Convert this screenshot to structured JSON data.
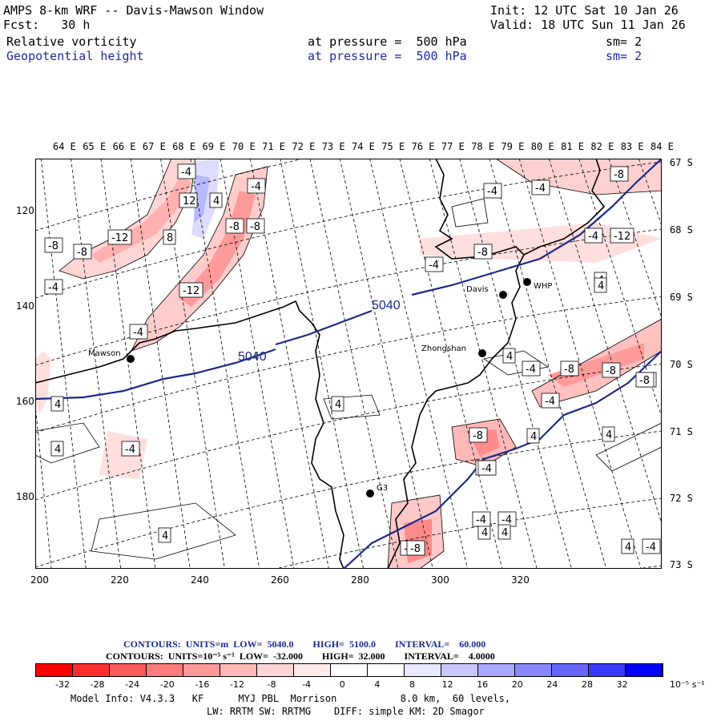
{
  "header": {
    "line1_left": "AMPS 8-km WRF -- Davis-Mawson Window",
    "line1_right": "Init: 12 UTC Sat 10 Jan 26",
    "line2_left": "Fcst:   30 h",
    "line2_right": "Valid: 18 UTC Sun 11 Jan 26",
    "field1": "Relative vorticity",
    "field1_level": "at pressure =  500 hPa",
    "field1_sm": "sm= 2",
    "field2": "Geopotential height",
    "field2_level": "at pressure =  500 hPa",
    "field2_sm": "sm= 2"
  },
  "lon_labels": [
    "64 E",
    "65 E",
    "66 E",
    "67 E",
    "68 E",
    "69 E",
    "70 E",
    "71 E",
    "72 E",
    "73 E",
    "74 E",
    "75 E",
    "76 E",
    "77 E",
    "78 E",
    "79 E",
    "80 E",
    "81 E",
    "82 E",
    "83 E",
    "84 E"
  ],
  "lat_labels": [
    "67 S",
    "68 S",
    "69 S",
    "70 S",
    "71 S",
    "72 S",
    "73 S"
  ],
  "y_grid_labels": [
    "120",
    "140",
    "160",
    "180"
  ],
  "x_grid_labels": [
    "200",
    "220",
    "240",
    "260",
    "280",
    "300",
    "320"
  ],
  "stations": [
    {
      "name": "Mawson"
    },
    {
      "name": "Davis"
    },
    {
      "name": "WHP"
    },
    {
      "name": "Zhongshan"
    },
    {
      "name": "G3"
    }
  ],
  "height_contour_labels": [
    "5040",
    "5040"
  ],
  "vorticity_labels": [
    "-4",
    "-8",
    "-12",
    "12",
    "4",
    "8",
    "-4",
    "-8",
    "-12",
    "-4",
    "-8",
    "-4",
    "-8",
    "-4",
    "-4",
    "-12",
    "-8",
    "-4",
    "-4",
    "-8",
    "-4",
    "-8",
    "-8",
    "-8",
    "-4",
    "4",
    "4",
    "4",
    "4",
    "4",
    "4",
    "-4",
    "-8",
    "-4",
    "-4",
    "4",
    "4",
    "4",
    "-8",
    "-4",
    "-4",
    "-4",
    "-8",
    "4",
    "-4",
    "4",
    "4"
  ],
  "footer": {
    "contours1": "CONTOURS:  UNITS=m  LOW=  5040.0        HIGH=  5100.0        INTERVAL=    60.000",
    "contours2": "CONTOURS:  UNITS=10⁻⁵ s⁻¹  LOW=  -32.000        HIGH=  32.000        INTERVAL=    4.0000",
    "colorbar_ticks": [
      "-32",
      "-28",
      "-24",
      "-20",
      "-16",
      "-12",
      "-8",
      "-4",
      "0",
      "4",
      "8",
      "12",
      "16",
      "20",
      "24",
      "28",
      "32"
    ],
    "colorbar_unit": "10⁻⁵ s⁻¹",
    "colorbar_colors": [
      "#ff0000",
      "#ff2e2e",
      "#ff5a5a",
      "#ff7a7a",
      "#ff9a9a",
      "#ffb8b8",
      "#ffd4d4",
      "#ffeaea",
      "#ffffff",
      "#ffffff",
      "#e8e8ff",
      "#c8c8ff",
      "#a8a8ff",
      "#8888ff",
      "#6666ff",
      "#3a3aff",
      "#0000ff"
    ],
    "model_info": "Model Info: V4.3.3   KF      MYJ PBL  Morrison           8.0 km,  60 levels,",
    "model_info2": "LW: RRTM SW: RRTMG    DIFF: simple KM: 2D Smagor"
  }
}
